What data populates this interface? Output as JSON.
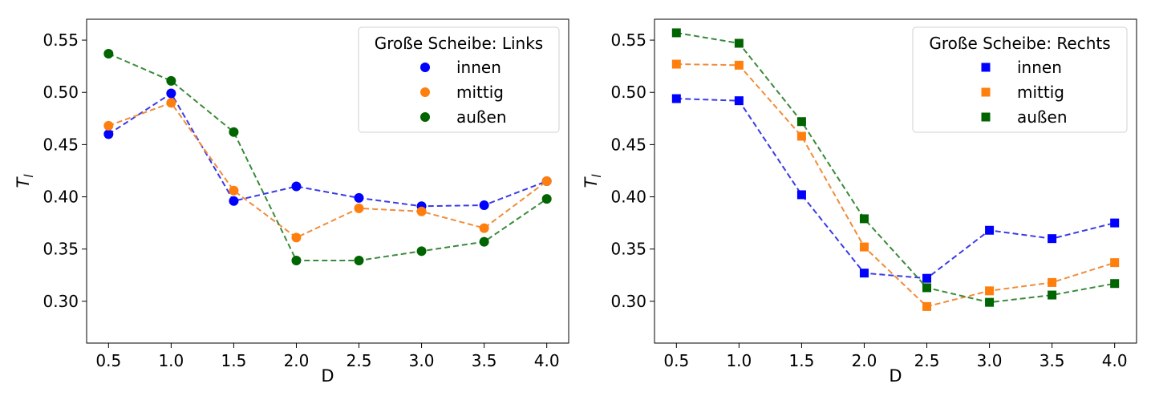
{
  "chart_data": [
    {
      "type": "line",
      "marker": "circle",
      "xlabel": "D",
      "ylabel": "T_l",
      "x": [
        0.5,
        1.0,
        1.5,
        2.0,
        2.5,
        3.0,
        3.5,
        4.0
      ],
      "xtick_labels": [
        "0.5",
        "1.0",
        "1.5",
        "2.0",
        "2.5",
        "3.0",
        "3.5",
        "4.0"
      ],
      "ylim": [
        0.26,
        0.57
      ],
      "yticks": [
        0.3,
        0.35,
        0.4,
        0.45,
        0.5,
        0.55
      ],
      "ytick_labels": [
        "0.30",
        "0.35",
        "0.40",
        "0.45",
        "0.50",
        "0.55"
      ],
      "legend_title": "Große Scheibe: Links",
      "legend_position": "top-right",
      "grid": false,
      "series": [
        {
          "name": "innen",
          "marker_color": "#0000ff",
          "line_color": "#3a3ae8",
          "values": [
            0.46,
            0.499,
            0.396,
            0.41,
            0.399,
            0.391,
            0.392,
            0.415
          ]
        },
        {
          "name": "mittig",
          "marker_color": "#ff7f0e",
          "line_color": "#f08c3a",
          "values": [
            0.468,
            0.49,
            0.406,
            0.361,
            0.389,
            0.386,
            0.37,
            0.415
          ]
        },
        {
          "name": "außen",
          "marker_color": "#006400",
          "line_color": "#3a8a3a",
          "values": [
            0.537,
            0.511,
            0.462,
            0.339,
            0.339,
            0.348,
            0.357,
            0.398
          ]
        }
      ]
    },
    {
      "type": "line",
      "marker": "square",
      "xlabel": "D",
      "ylabel": "T_l",
      "x": [
        0.5,
        1.0,
        1.5,
        2.0,
        2.5,
        3.0,
        3.5,
        4.0
      ],
      "xtick_labels": [
        "0.5",
        "1.0",
        "1.5",
        "2.0",
        "2.5",
        "3.0",
        "3.5",
        "4.0"
      ],
      "ylim": [
        0.26,
        0.57
      ],
      "yticks": [
        0.3,
        0.35,
        0.4,
        0.45,
        0.5,
        0.55
      ],
      "ytick_labels": [
        "0.30",
        "0.35",
        "0.40",
        "0.45",
        "0.50",
        "0.55"
      ],
      "legend_title": "Große Scheibe: Rechts",
      "legend_position": "top-right",
      "grid": false,
      "series": [
        {
          "name": "innen",
          "marker_color": "#0000ff",
          "line_color": "#3a3ae8",
          "values": [
            0.494,
            0.492,
            0.402,
            0.327,
            0.322,
            0.368,
            0.36,
            0.375
          ]
        },
        {
          "name": "mittig",
          "marker_color": "#ff7f0e",
          "line_color": "#f08c3a",
          "values": [
            0.527,
            0.526,
            0.458,
            0.352,
            0.295,
            0.31,
            0.318,
            0.337
          ]
        },
        {
          "name": "außen",
          "marker_color": "#006400",
          "line_color": "#3a8a3a",
          "values": [
            0.557,
            0.547,
            0.472,
            0.379,
            0.313,
            0.299,
            0.306,
            0.317
          ]
        }
      ]
    }
  ]
}
